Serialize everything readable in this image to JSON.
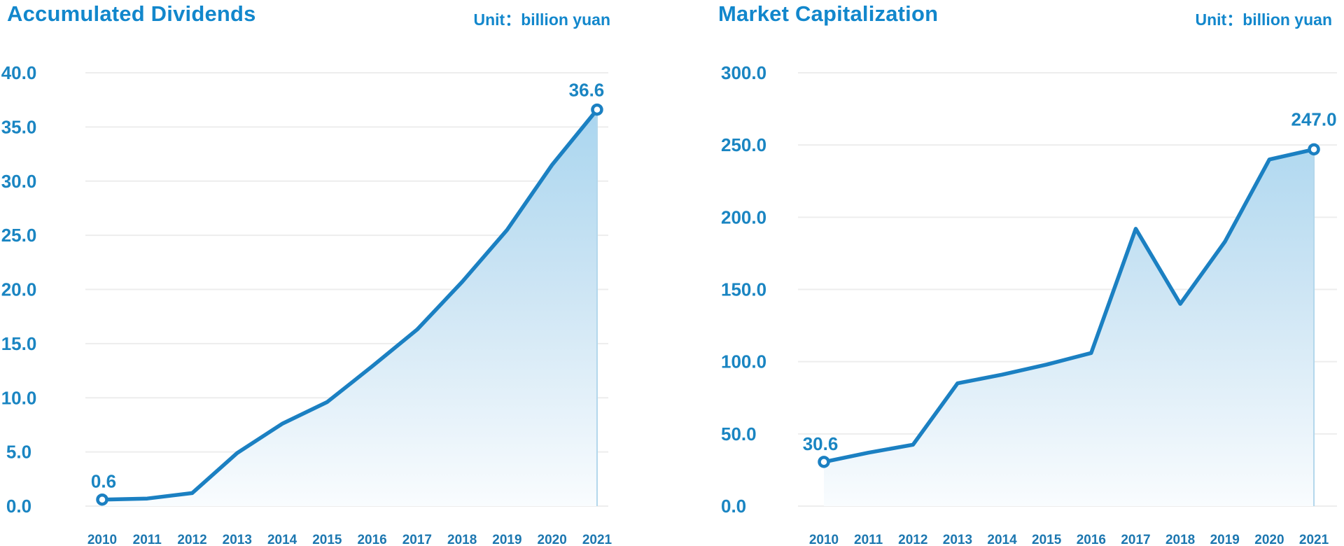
{
  "page": {
    "background": "#ffffff"
  },
  "colors": {
    "title": "#1287cc",
    "unit": "#1287cc",
    "tick_label": "#1a85c2",
    "year_label": "#1c77b0",
    "point_label": "#1a85c2",
    "line": "#1b80c2",
    "marker_fill": "#ffffff",
    "grid": "#ededed",
    "area_top": "#a2d2ee",
    "area_mid": "#cde5f4",
    "area_low": "#ecf5fb",
    "area_bottom": "#f9fcfe",
    "area_right_edge": "#b3d7ec"
  },
  "chart_data": [
    {
      "type": "area",
      "title": "Accumulated Dividends",
      "unit_label": "Unit：billion yuan",
      "categories": [
        "2010",
        "2011",
        "2012",
        "2013",
        "2014",
        "2015",
        "2016",
        "2017",
        "2018",
        "2019",
        "2020",
        "2021"
      ],
      "values": [
        0.6,
        0.7,
        1.2,
        4.9,
        7.6,
        9.6,
        12.9,
        16.3,
        20.7,
        25.5,
        31.5,
        36.6
      ],
      "y_ticks": [
        "40.0",
        "35.0",
        "30.0",
        "25.0",
        "20.0",
        "15.0",
        "10.0",
        "5.0",
        "0.0"
      ],
      "ylim": [
        0,
        40
      ],
      "grid": true,
      "legend": false,
      "first_point_label": "0.6",
      "last_point_label": "36.6"
    },
    {
      "type": "area",
      "title": "Market Capitalization",
      "unit_label": "Unit：billion yuan",
      "categories": [
        "2010",
        "2011",
        "2012",
        "2013",
        "2014",
        "2015",
        "2016",
        "2017",
        "2018",
        "2019",
        "2020",
        "2021"
      ],
      "values": [
        30.6,
        37.0,
        42.5,
        85.0,
        91.0,
        98.0,
        106.0,
        192.0,
        140.0,
        183.0,
        240.0,
        247.0
      ],
      "y_ticks": [
        "300.0",
        "250.0",
        "200.0",
        "150.0",
        "100.0",
        "50.0",
        "0.0"
      ],
      "ylim": [
        0,
        300
      ],
      "grid": true,
      "legend": false,
      "first_point_label": "30.6",
      "last_point_label": "247.0"
    }
  ]
}
